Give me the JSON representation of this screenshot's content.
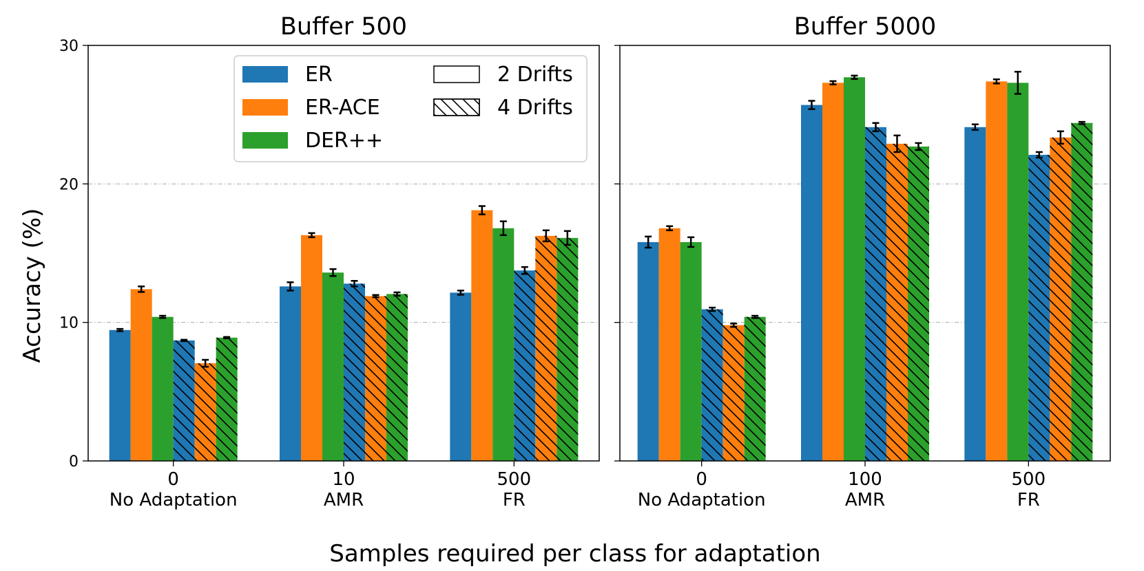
{
  "chart_data": {
    "type": "bar",
    "ylabel": "Accuracy (%)",
    "xlabel": "Samples required per class for adaptation",
    "ylim": [
      0,
      30
    ],
    "yticks": [
      "0",
      "10",
      "20",
      "30"
    ],
    "grid": "dash-dot horizontal at 10 and 20",
    "legend": {
      "placement": "top-right of left panel",
      "methods": [
        {
          "name": "ER",
          "color": "#1f77b4"
        },
        {
          "name": "ER-ACE",
          "color": "#ff7f0e"
        },
        {
          "name": "DER++",
          "color": "#2ca02c"
        }
      ],
      "drifts": [
        {
          "name": "2 Drifts",
          "hatch": false
        },
        {
          "name": "4 Drifts",
          "hatch": true
        }
      ]
    },
    "panels": [
      {
        "title": "Buffer 500",
        "groups": [
          {
            "tick": "0",
            "label": "No Adaptation",
            "two_drifts": [
              {
                "value": 9.45,
                "err": 0.08
              },
              {
                "value": 12.4,
                "err": 0.2
              },
              {
                "value": 10.4,
                "err": 0.08
              }
            ],
            "four_drifts": [
              {
                "value": 8.7,
                "err": 0.05
              },
              {
                "value": 7.05,
                "err": 0.25
              },
              {
                "value": 8.9,
                "err": 0.05
              }
            ]
          },
          {
            "tick": "10",
            "label": "AMR",
            "two_drifts": [
              {
                "value": 12.6,
                "err": 0.3
              },
              {
                "value": 16.3,
                "err": 0.15
              },
              {
                "value": 13.6,
                "err": 0.25
              }
            ],
            "four_drifts": [
              {
                "value": 12.8,
                "err": 0.2
              },
              {
                "value": 11.9,
                "err": 0.08
              },
              {
                "value": 12.05,
                "err": 0.12
              }
            ]
          },
          {
            "tick": "500",
            "label": "FR",
            "two_drifts": [
              {
                "value": 12.15,
                "err": 0.15
              },
              {
                "value": 18.1,
                "err": 0.3
              },
              {
                "value": 16.8,
                "err": 0.5
              }
            ],
            "four_drifts": [
              {
                "value": 13.75,
                "err": 0.25
              },
              {
                "value": 16.25,
                "err": 0.4
              },
              {
                "value": 16.1,
                "err": 0.5
              }
            ]
          }
        ]
      },
      {
        "title": "Buffer 5000",
        "groups": [
          {
            "tick": "0",
            "label": "No Adaptation",
            "two_drifts": [
              {
                "value": 15.8,
                "err": 0.4
              },
              {
                "value": 16.8,
                "err": 0.15
              },
              {
                "value": 15.8,
                "err": 0.35
              }
            ],
            "four_drifts": [
              {
                "value": 10.95,
                "err": 0.12
              },
              {
                "value": 9.8,
                "err": 0.12
              },
              {
                "value": 10.4,
                "err": 0.08
              }
            ]
          },
          {
            "tick": "100",
            "label": "AMR",
            "two_drifts": [
              {
                "value": 25.7,
                "err": 0.3
              },
              {
                "value": 27.3,
                "err": 0.12
              },
              {
                "value": 27.7,
                "err": 0.12
              }
            ],
            "four_drifts": [
              {
                "value": 24.1,
                "err": 0.3
              },
              {
                "value": 22.9,
                "err": 0.6
              },
              {
                "value": 22.7,
                "err": 0.25
              }
            ]
          },
          {
            "tick": "500",
            "label": "FR",
            "two_drifts": [
              {
                "value": 24.1,
                "err": 0.2
              },
              {
                "value": 27.4,
                "err": 0.15
              },
              {
                "value": 27.3,
                "err": 0.8
              }
            ],
            "four_drifts": [
              {
                "value": 22.1,
                "err": 0.2
              },
              {
                "value": 23.35,
                "err": 0.45
              },
              {
                "value": 24.4,
                "err": 0.08
              }
            ]
          }
        ]
      }
    ]
  }
}
